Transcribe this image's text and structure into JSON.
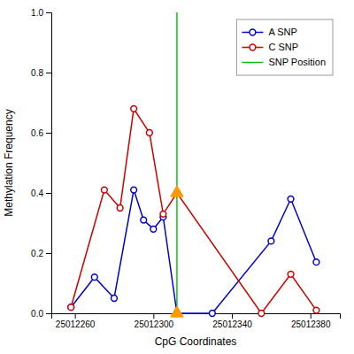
{
  "chart_data": {
    "type": "line",
    "xlabel": "CpG Coordinates",
    "ylabel": "Methylation Frequency",
    "xlim": [
      25012248,
      25012395
    ],
    "ylim": [
      0,
      1.0
    ],
    "xticks": [
      25012260,
      25012300,
      25012340,
      25012380
    ],
    "yticks": [
      {
        "value": 0.0,
        "label": "0.0"
      },
      0.2,
      0.4,
      0.6,
      0.8,
      {
        "value": 1.0,
        "label": "1.0"
      }
    ],
    "grid": false,
    "legend": "upper right",
    "series": [
      {
        "name": "A SNP",
        "color": "#0000cc",
        "marker": "circle",
        "x": [
          25012258,
          25012270,
          25012280,
          25012290,
          25012295,
          25012300,
          25012305,
          25012312,
          25012330,
          25012360,
          25012370,
          25012383
        ],
        "values": [
          0.02,
          0.12,
          0.05,
          0.41,
          0.31,
          0.28,
          0.32,
          0.0,
          0.0,
          0.24,
          0.38,
          0.17
        ]
      },
      {
        "name": "C SNP",
        "color": "#cc0000",
        "marker": "circle",
        "x": [
          25012258,
          25012275,
          25012283,
          25012290,
          25012298,
          25012305,
          25012312,
          25012355,
          25012370,
          25012383
        ],
        "values": [
          0.02,
          0.41,
          0.35,
          0.68,
          0.6,
          0.33,
          0.4,
          0.0,
          0.13,
          0.01
        ]
      }
    ],
    "vlines": [
      {
        "name": "SNP Position",
        "x": 25012312,
        "color": "#00bb00"
      }
    ],
    "snp_markers": {
      "x": [
        25012312,
        25012312
      ],
      "values": [
        0.4,
        0.0
      ],
      "color": "#ff9900",
      "marker": "triangle"
    }
  }
}
